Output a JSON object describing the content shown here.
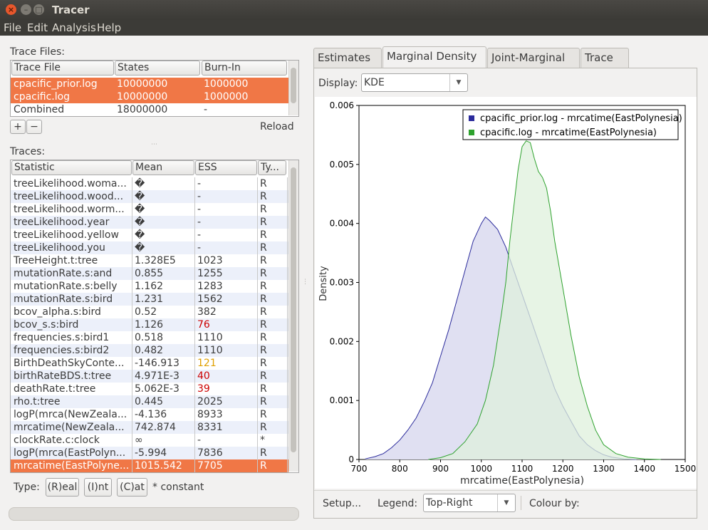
{
  "window": {
    "title": "Tracer"
  },
  "menu": [
    {
      "label": "File"
    },
    {
      "label": "Edit"
    },
    {
      "label": "Analysis"
    },
    {
      "label": "Help"
    }
  ],
  "trace_files": {
    "section_label": "Trace Files:",
    "columns": [
      "Trace File",
      "States",
      "Burn-In"
    ],
    "rows": [
      {
        "file": "cpacific_prior.log",
        "states": "10000000",
        "burnin": "1000000",
        "selected": true
      },
      {
        "file": "cpacific.log",
        "states": "10000000",
        "burnin": "1000000",
        "selected": true
      },
      {
        "file": "Combined",
        "states": "18000000",
        "burnin": "-",
        "selected": false
      }
    ],
    "add_label": "+",
    "remove_label": "−",
    "reload_label": "Reload"
  },
  "traces": {
    "section_label": "Traces:",
    "columns": [
      "Statistic",
      "Mean",
      "ESS",
      "Ty..."
    ],
    "rows": [
      {
        "stat": "treeLikelihood.woma...",
        "mean": "�",
        "ess": "-",
        "type": "R"
      },
      {
        "stat": "treeLikelihood.wood...",
        "mean": "�",
        "ess": "-",
        "type": "R"
      },
      {
        "stat": "treeLikelihood.worm...",
        "mean": "�",
        "ess": "-",
        "type": "R"
      },
      {
        "stat": "treeLikelihood.year",
        "mean": "�",
        "ess": "-",
        "type": "R"
      },
      {
        "stat": "treeLikelihood.yellow",
        "mean": "�",
        "ess": "-",
        "type": "R"
      },
      {
        "stat": "treeLikelihood.you",
        "mean": "�",
        "ess": "-",
        "type": "R"
      },
      {
        "stat": "TreeHeight.t:tree",
        "mean": "1.328E5",
        "ess": "1023",
        "type": "R"
      },
      {
        "stat": "mutationRate.s:and",
        "mean": "0.855",
        "ess": "1255",
        "type": "R"
      },
      {
        "stat": "mutationRate.s:belly",
        "mean": "1.162",
        "ess": "1283",
        "type": "R"
      },
      {
        "stat": "mutationRate.s:bird",
        "mean": "1.231",
        "ess": "1562",
        "type": "R"
      },
      {
        "stat": "bcov_alpha.s:bird",
        "mean": "0.52",
        "ess": "382",
        "type": "R"
      },
      {
        "stat": "bcov_s.s:bird",
        "mean": "1.126",
        "ess": "76",
        "type": "R",
        "ess_color": "#cc0000"
      },
      {
        "stat": "frequencies.s:bird1",
        "mean": "0.518",
        "ess": "1110",
        "type": "R"
      },
      {
        "stat": "frequencies.s:bird2",
        "mean": "0.482",
        "ess": "1110",
        "type": "R"
      },
      {
        "stat": "BirthDeathSkyConte...",
        "mean": "-146.913",
        "ess": "121",
        "type": "R",
        "ess_color": "#e0a000"
      },
      {
        "stat": "birthRateBDS.t:tree",
        "mean": "4.971E-3",
        "ess": "40",
        "type": "R",
        "ess_color": "#cc0000"
      },
      {
        "stat": "deathRate.t:tree",
        "mean": "5.062E-3",
        "ess": "39",
        "type": "R",
        "ess_color": "#cc0000"
      },
      {
        "stat": "rho.t:tree",
        "mean": "0.445",
        "ess": "2025",
        "type": "R"
      },
      {
        "stat": "logP(mrca(NewZeala...",
        "mean": "-4.136",
        "ess": "8933",
        "type": "R"
      },
      {
        "stat": "mrcatime(NewZeala...",
        "mean": "742.874",
        "ess": "8331",
        "type": "R"
      },
      {
        "stat": "clockRate.c:clock",
        "mean": "∞",
        "ess": "-",
        "type": "*"
      },
      {
        "stat": "logP(mrca(EastPolyn...",
        "mean": "-5.994",
        "ess": "7836",
        "type": "R"
      },
      {
        "stat": "mrcatime(EastPolyne...",
        "mean": "1015.542",
        "ess": "7705",
        "type": "R",
        "selected": true
      }
    ]
  },
  "type_bar": {
    "label": "Type:",
    "real": "(R)eal",
    "int": "(I)nt",
    "cat": "(C)at",
    "constant": "* constant"
  },
  "tabs": [
    {
      "label": "Estimates",
      "icon": "estimates-mu-icon",
      "active": false
    },
    {
      "label": "Marginal Density",
      "icon": "density-icon",
      "active": true
    },
    {
      "label": "Joint-Marginal",
      "icon": "joint-marginal-icon",
      "active": false
    },
    {
      "label": "Trace",
      "icon": "trace-icon",
      "active": false
    }
  ],
  "display": {
    "label": "Display:",
    "value": "KDE"
  },
  "bottom": {
    "setup_label": "Setup...",
    "legend_label": "Legend:",
    "legend_value": "Top-Right",
    "colour_label": "Colour by:"
  },
  "chart_data": {
    "type": "area",
    "xlabel": "mrcatime(EastPolynesia)",
    "ylabel": "Density",
    "xlim": [
      700,
      1500
    ],
    "ylim": [
      0,
      0.006
    ],
    "xticks": [
      700,
      800,
      900,
      1000,
      1100,
      1200,
      1300,
      1400,
      1500
    ],
    "yticks": [
      0,
      0.001,
      0.002,
      0.003,
      0.004,
      0.005,
      0.006
    ],
    "ytick_labels": [
      "0",
      "0.001",
      "0.002",
      "0.003",
      "0.004",
      "0.005",
      "0.006"
    ],
    "legend_position": "top-right",
    "series": [
      {
        "name": "cpacific_prior.log - mrcatime(EastPolynesia)",
        "color": "#2b2b9c",
        "fill": "#e0e0f2",
        "x": [
          715,
          740,
          760,
          780,
          800,
          820,
          840,
          860,
          880,
          900,
          920,
          940,
          960,
          980,
          1000,
          1010,
          1020,
          1040,
          1060,
          1080,
          1100,
          1120,
          1140,
          1160,
          1180,
          1200,
          1220,
          1240,
          1260,
          1280,
          1300,
          1320,
          1350,
          1380
        ],
        "y": [
          1e-05,
          5e-05,
          0.0001,
          0.0002,
          0.00033,
          0.0005,
          0.0007,
          0.00098,
          0.0013,
          0.00175,
          0.0022,
          0.0027,
          0.0032,
          0.0037,
          0.004,
          0.00411,
          0.00405,
          0.0039,
          0.0036,
          0.0032,
          0.0028,
          0.0024,
          0.002,
          0.0016,
          0.0012,
          0.0009,
          0.00065,
          0.0004,
          0.00025,
          0.00015,
          8e-05,
          4e-05,
          1e-05,
          0.0
        ]
      },
      {
        "name": "cpacific.log - mrcatime(EastPolynesia)",
        "color": "#2ea22e",
        "fill": "#dff0dc",
        "x": [
          870,
          900,
          930,
          960,
          990,
          1010,
          1030,
          1050,
          1060,
          1070,
          1080,
          1090,
          1100,
          1110,
          1120,
          1130,
          1140,
          1150,
          1160,
          1170,
          1180,
          1200,
          1220,
          1240,
          1260,
          1280,
          1300,
          1330,
          1360,
          1400,
          1440
        ],
        "y": [
          0.0,
          3e-05,
          0.0001,
          0.0003,
          0.0006,
          0.001,
          0.0016,
          0.0025,
          0.003,
          0.0037,
          0.0043,
          0.0049,
          0.0053,
          0.0054,
          0.00537,
          0.0051,
          0.00488,
          0.00478,
          0.0046,
          0.0042,
          0.0037,
          0.0029,
          0.0021,
          0.0014,
          0.0009,
          0.0005,
          0.00025,
          0.0001,
          4e-05,
          1e-05,
          0.0
        ]
      }
    ]
  }
}
